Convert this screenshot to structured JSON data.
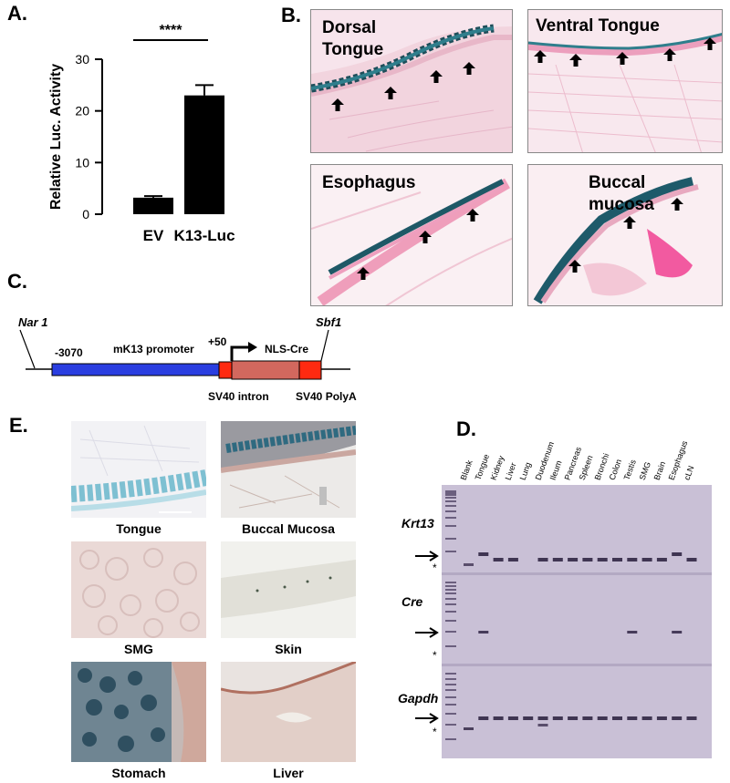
{
  "panelA": {
    "letter": "A.",
    "significance": "****",
    "ylabel": "Relative Luc. Activity"
  },
  "chart_data": {
    "type": "bar",
    "categories": [
      "EV",
      "K13-Luc"
    ],
    "values": [
      3.2,
      23
    ],
    "errors": [
      0.3,
      2.0
    ],
    "ylabel": "Relative Luc. Activity",
    "ylim": [
      0,
      30
    ],
    "yticks": [
      "0",
      "10",
      "20",
      "30"
    ],
    "color": "#000000"
  },
  "panelB": {
    "letter": "B.",
    "images": [
      {
        "label_line1": "Dorsal",
        "label_line2": "Tongue"
      },
      {
        "label_line1": "Ventral Tongue",
        "label_line2": ""
      },
      {
        "label_line1": "Esophagus",
        "label_line2": ""
      },
      {
        "label_line1": "Buccal",
        "label_line2": "mucosa"
      }
    ]
  },
  "panelC": {
    "letter": "C.",
    "nar": "Nar 1",
    "sbf": "Sbf1",
    "pos_start": "-3070",
    "promoter": "mK13 promoter",
    "pos_tss": "+50",
    "nls_cre": "NLS-Cre",
    "intron": "SV40 intron",
    "polya": "SV40 PolyA",
    "colors": {
      "promoter": "#2a3ee0",
      "sv40": "#ff2a10",
      "cre": "#d2685e"
    }
  },
  "panelE": {
    "letter": "E.",
    "captions": [
      "Tongue",
      "Buccal Mucosa",
      "SMG",
      "Skin",
      "Stomach",
      "Liver"
    ]
  },
  "panelD": {
    "letter": "D.",
    "lanes": [
      "Blank",
      "Tongue",
      "Kidney",
      "Liver",
      "Lung",
      "Duodenum",
      "Ileum",
      "Pancreas",
      "Spleen",
      "Bronchi",
      "Colon",
      "Testis",
      "SMG",
      "Brain",
      "Esophagus",
      "cLN"
    ],
    "genes": [
      "Krt13",
      "Cre",
      "Gapdh"
    ],
    "star": "*"
  }
}
